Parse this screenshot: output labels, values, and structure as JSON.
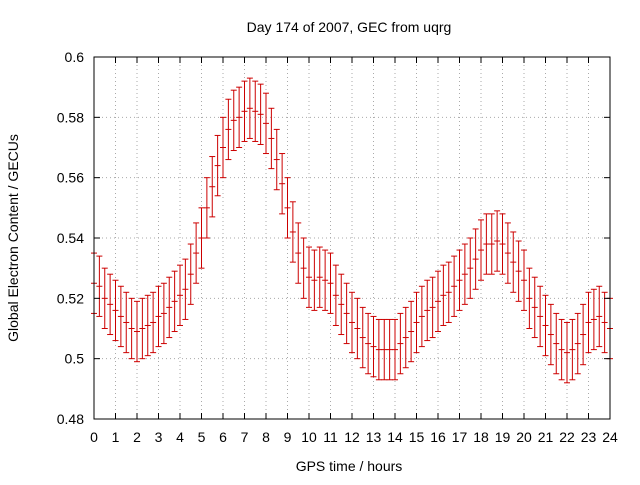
{
  "chart_data": {
    "type": "scatter",
    "title": "Day 174 of 2007, GEC from uqrg",
    "xlabel": "GPS time / hours",
    "ylabel": "Global Electron Content / GECUs",
    "xlim": [
      0,
      24
    ],
    "ylim": [
      0.48,
      0.6
    ],
    "x_ticks": [
      0,
      1,
      2,
      3,
      4,
      5,
      6,
      7,
      8,
      9,
      10,
      11,
      12,
      13,
      14,
      15,
      16,
      17,
      18,
      19,
      20,
      21,
      22,
      23,
      24
    ],
    "y_ticks": [
      0.48,
      0.5,
      0.52,
      0.54,
      0.56,
      0.58,
      0.6
    ],
    "y_tick_labels": [
      "0.48",
      "0.5",
      "0.52",
      "0.54",
      "0.56",
      "0.58",
      "0.6"
    ],
    "grid": true,
    "error_bar": 0.01,
    "color": "#cc0000",
    "x": [
      0,
      0.25,
      0.5,
      0.75,
      1,
      1.25,
      1.5,
      1.75,
      2,
      2.25,
      2.5,
      2.75,
      3,
      3.25,
      3.5,
      3.75,
      4,
      4.25,
      4.5,
      4.75,
      5,
      5.25,
      5.5,
      5.75,
      6,
      6.25,
      6.5,
      6.75,
      7,
      7.25,
      7.5,
      7.75,
      8,
      8.25,
      8.5,
      8.75,
      9,
      9.25,
      9.5,
      9.75,
      10,
      10.25,
      10.5,
      10.75,
      11,
      11.25,
      11.5,
      11.75,
      12,
      12.25,
      12.5,
      12.75,
      13,
      13.25,
      13.5,
      13.75,
      14,
      14.25,
      14.5,
      14.75,
      15,
      15.25,
      15.5,
      15.75,
      16,
      16.25,
      16.5,
      16.75,
      17,
      17.25,
      17.5,
      17.75,
      18,
      18.25,
      18.5,
      18.75,
      19,
      19.25,
      19.5,
      19.75,
      20,
      20.25,
      20.5,
      20.75,
      21,
      21.25,
      21.5,
      21.75,
      22,
      22.25,
      22.5,
      22.75,
      23,
      23.25,
      23.5,
      23.75,
      24
    ],
    "y": [
      0.525,
      0.524,
      0.52,
      0.518,
      0.516,
      0.514,
      0.512,
      0.51,
      0.509,
      0.51,
      0.511,
      0.512,
      0.514,
      0.515,
      0.517,
      0.519,
      0.521,
      0.523,
      0.528,
      0.535,
      0.54,
      0.55,
      0.557,
      0.564,
      0.57,
      0.576,
      0.579,
      0.58,
      0.582,
      0.583,
      0.582,
      0.581,
      0.578,
      0.573,
      0.566,
      0.558,
      0.55,
      0.542,
      0.535,
      0.53,
      0.527,
      0.526,
      0.527,
      0.526,
      0.525,
      0.521,
      0.518,
      0.515,
      0.512,
      0.51,
      0.507,
      0.505,
      0.504,
      0.503,
      0.503,
      0.503,
      0.503,
      0.505,
      0.507,
      0.509,
      0.512,
      0.514,
      0.516,
      0.517,
      0.519,
      0.521,
      0.522,
      0.524,
      0.526,
      0.528,
      0.53,
      0.533,
      0.536,
      0.538,
      0.538,
      0.539,
      0.538,
      0.535,
      0.532,
      0.529,
      0.526,
      0.52,
      0.517,
      0.514,
      0.511,
      0.508,
      0.505,
      0.503,
      0.502,
      0.503,
      0.505,
      0.508,
      0.512,
      0.513,
      0.514,
      0.512,
      0.51
    ]
  }
}
